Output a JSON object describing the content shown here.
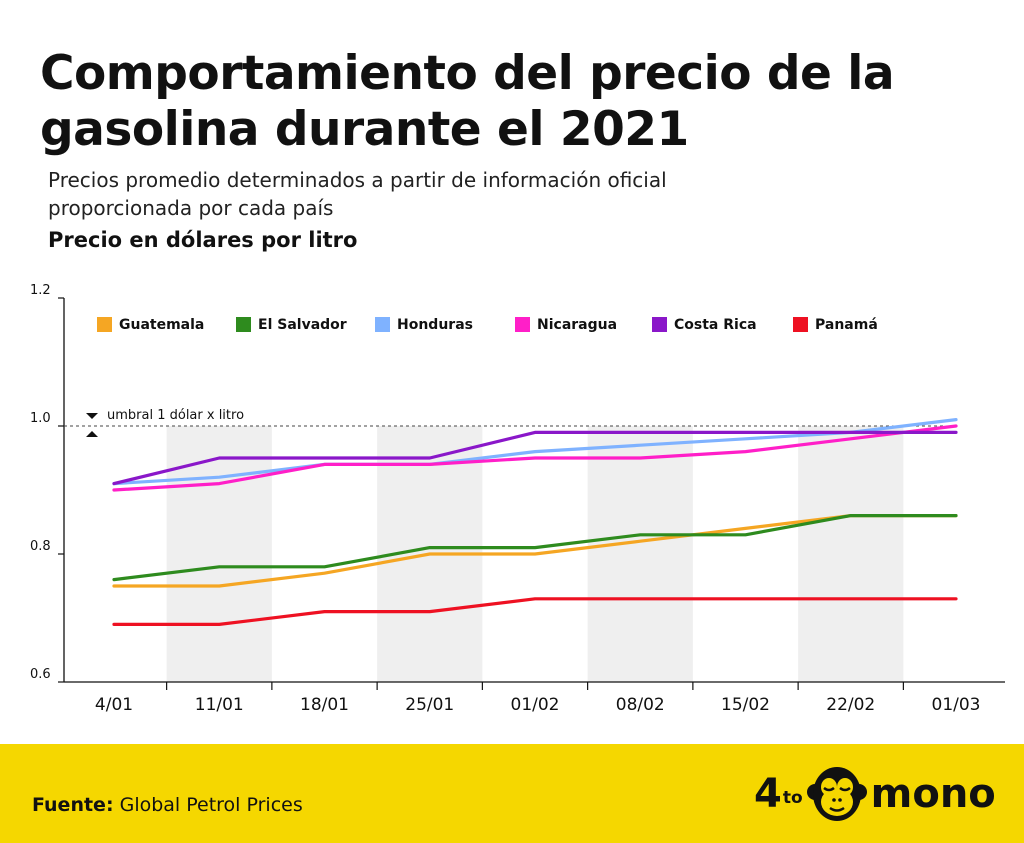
{
  "title": "Comportamiento del precio de la gasolina durante el 2021",
  "subtitle": "Precios promedio determinados a partir de información oficial proporcionada por cada país",
  "unit_label": "Precio en dólares por litro",
  "threshold_label": "umbral 1 dólar x litro",
  "footer": {
    "source_label": "Fuente:",
    "source_text": "Global Petrol Prices",
    "logo_prefix": "4",
    "logo_sup": "to",
    "logo_suffix": "mono"
  },
  "chart_data": {
    "type": "line",
    "title": "Comportamiento del precio de la gasolina durante el 2021",
    "ylabel": "Precio en dólares por litro",
    "xlabel": "",
    "categories": [
      "4/01",
      "11/01",
      "18/01",
      "25/01",
      "01/02",
      "08/02",
      "15/02",
      "22/02",
      "01/03"
    ],
    "ylim": [
      0.6,
      1.2
    ],
    "yticks": [
      "0.6",
      "0.8",
      "1.0",
      "1.2"
    ],
    "threshold": 1.0,
    "grid": false,
    "legend": "top",
    "series": [
      {
        "name": "Guatemala",
        "color": "#f5a623",
        "values": [
          0.75,
          0.75,
          0.77,
          0.8,
          0.8,
          0.82,
          0.84,
          0.86,
          0.86
        ]
      },
      {
        "name": "El Salvador",
        "color": "#2e8b1e",
        "values": [
          0.76,
          0.78,
          0.78,
          0.81,
          0.81,
          0.83,
          0.83,
          0.86,
          0.86
        ]
      },
      {
        "name": "Honduras",
        "color": "#7fb2ff",
        "values": [
          0.91,
          0.92,
          0.94,
          0.94,
          0.96,
          0.97,
          0.98,
          0.99,
          1.01
        ]
      },
      {
        "name": "Nicaragua",
        "color": "#ff1fc8",
        "values": [
          0.9,
          0.91,
          0.94,
          0.94,
          0.95,
          0.95,
          0.96,
          0.98,
          1.0
        ]
      },
      {
        "name": "Costa Rica",
        "color": "#8a17c9",
        "values": [
          0.91,
          0.95,
          0.95,
          0.95,
          0.99,
          0.99,
          0.99,
          0.99,
          0.99
        ]
      },
      {
        "name": "Panamá",
        "color": "#ee1122",
        "values": [
          0.69,
          0.69,
          0.71,
          0.71,
          0.73,
          0.73,
          0.73,
          0.73,
          0.73
        ]
      }
    ]
  }
}
